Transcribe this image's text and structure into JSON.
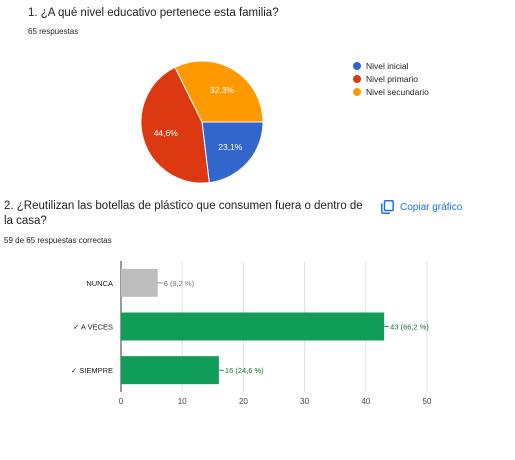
{
  "question1": {
    "title": "1. ¿A qué nivel educativo pertenece esta familia?",
    "responses": "65 respuestas"
  },
  "question2": {
    "title": "2. ¿Reutilizan las botellas de plástico que consumen fuera o dentro de la casa?",
    "responses": "59 de 65 respuestas correctas",
    "copy_label": "Copiar gráfico",
    "copy_icon": "copy-icon"
  },
  "chart_data": [
    {
      "type": "pie",
      "title": "",
      "labels": [
        "Nivel inicial",
        "Nivel primario",
        "Nivel secundario"
      ],
      "values": [
        23.1,
        44.6,
        32.3
      ],
      "value_labels": [
        "23,1%",
        "44,6%",
        "32,3%"
      ],
      "colors": [
        "#3366cc",
        "#dc3912",
        "#ff9900"
      ],
      "legend": "right"
    },
    {
      "type": "bar",
      "orientation": "horizontal",
      "title": "",
      "categories": [
        "NUNCA",
        "✓ A VECES",
        "✓ SIEMPRE"
      ],
      "values": [
        6,
        43,
        16
      ],
      "value_labels": [
        "6 (9,2 %)",
        "43 (66,2 %)",
        "16 (24,6 %)"
      ],
      "colors": [
        "#bdbdbd",
        "#0f9d58",
        "#0f9d58"
      ],
      "label_colors": [
        "#757575",
        "#137333",
        "#137333"
      ],
      "xlim": [
        0,
        50
      ],
      "xticks": [
        0,
        10,
        20,
        30,
        40,
        50
      ],
      "grid": true
    }
  ]
}
